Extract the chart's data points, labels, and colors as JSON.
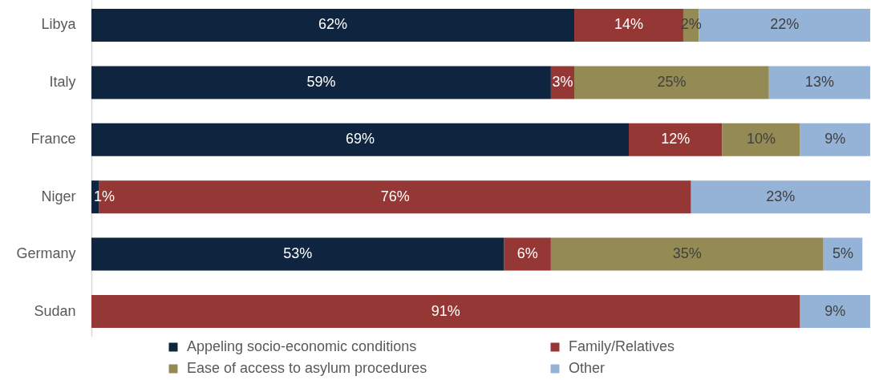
{
  "chart_data": {
    "type": "bar",
    "orientation": "horizontal",
    "stacked": true,
    "categories": [
      "Libya",
      "Italy",
      "France",
      "Niger",
      "Germany",
      "Sudan"
    ],
    "series": [
      {
        "name": "Appeling socio-economic conditions",
        "color": "#0f243e",
        "values": [
          62,
          59,
          69,
          1,
          53,
          null
        ],
        "value_labels": [
          "62%",
          "59%",
          "69%",
          "1%",
          "53%",
          null
        ]
      },
      {
        "name": "Family/Relatives",
        "color": "#953735",
        "values": [
          14,
          3,
          12,
          76,
          6,
          91
        ],
        "value_labels": [
          "14%",
          "3%",
          "12%",
          "76%",
          "6%",
          "91%"
        ]
      },
      {
        "name": "Ease of access to asylum procedures",
        "color": "#948a54",
        "values": [
          2,
          25,
          10,
          null,
          35,
          null
        ],
        "value_labels": [
          "2%",
          "25%",
          "10%",
          null,
          "35%",
          null
        ]
      },
      {
        "name": "Other",
        "color": "#95b3d7",
        "values": [
          22,
          13,
          9,
          23,
          5,
          9
        ],
        "value_labels": [
          "22%",
          "13%",
          "9%",
          "23%",
          "5%",
          "9%"
        ]
      }
    ],
    "xlim": [
      0,
      100
    ],
    "tick_labels": "y",
    "legend": "bottom"
  }
}
